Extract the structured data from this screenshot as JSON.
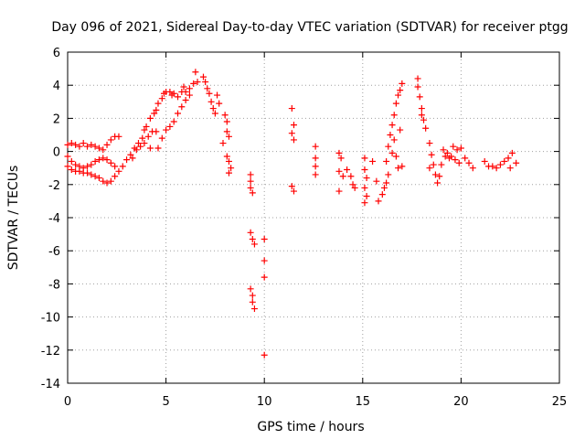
{
  "chart_data": {
    "type": "scatter",
    "title": "Day 096 of 2021, Sidereal Day-to-day VTEC variation (SDTVAR) for receiver ptgg",
    "xlabel": "GPS time / hours",
    "ylabel": "SDTVAR / TECUs",
    "xlim": [
      0,
      25
    ],
    "ylim": [
      -14,
      6
    ],
    "xticks": [
      0,
      5,
      10,
      15,
      20,
      25
    ],
    "yticks": [
      -14,
      -12,
      -10,
      -8,
      -6,
      -4,
      -2,
      0,
      2,
      4,
      6
    ],
    "grid": true,
    "marker": "+",
    "color": "#ff0000",
    "series": [
      {
        "name": "ptgg",
        "points": [
          [
            0.0,
            0.4
          ],
          [
            0.2,
            0.5
          ],
          [
            0.4,
            0.4
          ],
          [
            0.6,
            0.3
          ],
          [
            0.8,
            0.5
          ],
          [
            1.0,
            0.3
          ],
          [
            1.2,
            0.4
          ],
          [
            1.4,
            0.3
          ],
          [
            1.6,
            0.2
          ],
          [
            1.8,
            0.1
          ],
          [
            2.0,
            0.4
          ],
          [
            2.2,
            0.7
          ],
          [
            2.4,
            0.9
          ],
          [
            2.6,
            0.9
          ],
          [
            0.0,
            -0.3
          ],
          [
            0.2,
            -0.6
          ],
          [
            0.4,
            -0.8
          ],
          [
            0.6,
            -0.9
          ],
          [
            0.8,
            -1.0
          ],
          [
            1.0,
            -0.9
          ],
          [
            1.2,
            -0.8
          ],
          [
            1.4,
            -0.6
          ],
          [
            1.6,
            -0.5
          ],
          [
            1.8,
            -0.4
          ],
          [
            2.0,
            -0.5
          ],
          [
            2.2,
            -0.7
          ],
          [
            2.4,
            -0.9
          ],
          [
            0.0,
            -0.9
          ],
          [
            0.2,
            -1.1
          ],
          [
            0.4,
            -1.2
          ],
          [
            0.6,
            -1.2
          ],
          [
            0.8,
            -1.3
          ],
          [
            1.0,
            -1.3
          ],
          [
            1.2,
            -1.4
          ],
          [
            1.4,
            -1.5
          ],
          [
            1.6,
            -1.6
          ],
          [
            1.8,
            -1.8
          ],
          [
            2.0,
            -1.9
          ],
          [
            2.2,
            -1.8
          ],
          [
            2.4,
            -1.5
          ],
          [
            2.6,
            -1.2
          ],
          [
            2.8,
            -0.9
          ],
          [
            3.0,
            -0.5
          ],
          [
            3.2,
            -0.2
          ],
          [
            3.4,
            0.2
          ],
          [
            3.6,
            0.5
          ],
          [
            3.8,
            0.8
          ],
          [
            3.3,
            -0.4
          ],
          [
            3.5,
            0.1
          ],
          [
            3.7,
            0.3
          ],
          [
            3.9,
            0.5
          ],
          [
            4.1,
            0.9
          ],
          [
            4.3,
            1.2
          ],
          [
            4.5,
            1.2
          ],
          [
            3.9,
            1.3
          ],
          [
            4.0,
            1.5
          ],
          [
            4.2,
            2.0
          ],
          [
            4.4,
            2.3
          ],
          [
            4.5,
            2.5
          ],
          [
            4.6,
            2.9
          ],
          [
            4.8,
            3.2
          ],
          [
            4.9,
            3.5
          ],
          [
            5.0,
            3.6
          ],
          [
            5.2,
            3.6
          ],
          [
            5.3,
            3.4
          ],
          [
            5.4,
            3.5
          ],
          [
            5.6,
            3.3
          ],
          [
            5.8,
            3.6
          ],
          [
            5.9,
            3.9
          ],
          [
            6.0,
            3.6
          ],
          [
            6.2,
            3.8
          ],
          [
            6.4,
            4.1
          ],
          [
            6.5,
            4.8
          ],
          [
            6.6,
            4.2
          ],
          [
            4.2,
            0.2
          ],
          [
            4.6,
            0.2
          ],
          [
            4.8,
            0.8
          ],
          [
            5.0,
            1.3
          ],
          [
            5.2,
            1.5
          ],
          [
            5.4,
            1.8
          ],
          [
            5.6,
            2.3
          ],
          [
            5.8,
            2.7
          ],
          [
            6.0,
            3.1
          ],
          [
            6.2,
            3.4
          ],
          [
            6.9,
            4.5
          ],
          [
            7.0,
            4.2
          ],
          [
            7.1,
            3.8
          ],
          [
            7.2,
            3.5
          ],
          [
            7.3,
            3.0
          ],
          [
            7.4,
            2.6
          ],
          [
            7.5,
            2.3
          ],
          [
            7.6,
            3.4
          ],
          [
            7.7,
            2.9
          ],
          [
            8.0,
            2.2
          ],
          [
            8.1,
            1.8
          ],
          [
            8.1,
            1.2
          ],
          [
            8.2,
            0.9
          ],
          [
            7.9,
            0.5
          ],
          [
            8.1,
            -0.3
          ],
          [
            8.2,
            -0.6
          ],
          [
            8.3,
            -1.0
          ],
          [
            8.2,
            -1.3
          ],
          [
            9.3,
            -1.4
          ],
          [
            9.3,
            -1.8
          ],
          [
            9.3,
            -2.2
          ],
          [
            9.4,
            -2.5
          ],
          [
            9.3,
            -4.9
          ],
          [
            9.4,
            -5.3
          ],
          [
            9.5,
            -5.6
          ],
          [
            9.3,
            -8.3
          ],
          [
            9.4,
            -8.7
          ],
          [
            9.4,
            -9.1
          ],
          [
            9.5,
            -9.5
          ],
          [
            10.0,
            -5.3
          ],
          [
            10.0,
            -6.6
          ],
          [
            10.0,
            -7.6
          ],
          [
            10.0,
            -12.3
          ],
          [
            11.4,
            2.6
          ],
          [
            11.5,
            1.6
          ],
          [
            11.4,
            1.1
          ],
          [
            11.5,
            0.7
          ],
          [
            11.4,
            -2.1
          ],
          [
            11.5,
            -2.4
          ],
          [
            12.6,
            0.3
          ],
          [
            12.6,
            -0.4
          ],
          [
            12.6,
            -0.9
          ],
          [
            12.6,
            -1.4
          ],
          [
            13.8,
            -0.1
          ],
          [
            13.9,
            -0.4
          ],
          [
            13.8,
            -1.2
          ],
          [
            14.0,
            -1.5
          ],
          [
            13.8,
            -2.4
          ],
          [
            14.2,
            -1.1
          ],
          [
            14.4,
            -1.5
          ],
          [
            14.5,
            -2.0
          ],
          [
            14.6,
            -2.2
          ],
          [
            15.1,
            -0.4
          ],
          [
            15.1,
            -1.1
          ],
          [
            15.2,
            -1.6
          ],
          [
            15.1,
            -2.2
          ],
          [
            15.2,
            -2.7
          ],
          [
            15.1,
            -3.1
          ],
          [
            15.5,
            -0.6
          ],
          [
            15.7,
            -1.8
          ],
          [
            15.8,
            -3.0
          ],
          [
            16.0,
            -2.6
          ],
          [
            16.1,
            -2.2
          ],
          [
            16.2,
            -1.9
          ],
          [
            16.3,
            -1.4
          ],
          [
            16.2,
            -0.6
          ],
          [
            16.3,
            0.3
          ],
          [
            16.4,
            1.0
          ],
          [
            16.5,
            1.6
          ],
          [
            16.6,
            2.2
          ],
          [
            16.7,
            2.9
          ],
          [
            16.8,
            3.4
          ],
          [
            16.9,
            3.7
          ],
          [
            17.0,
            4.1
          ],
          [
            16.5,
            -0.1
          ],
          [
            16.7,
            -0.3
          ],
          [
            16.8,
            -1.0
          ],
          [
            17.0,
            -0.9
          ],
          [
            16.6,
            0.7
          ],
          [
            16.9,
            1.3
          ],
          [
            17.8,
            4.4
          ],
          [
            17.8,
            3.9
          ],
          [
            17.9,
            3.3
          ],
          [
            18.0,
            2.6
          ],
          [
            18.1,
            1.9
          ],
          [
            18.2,
            1.4
          ],
          [
            18.0,
            2.2
          ],
          [
            18.4,
            0.5
          ],
          [
            18.5,
            -0.2
          ],
          [
            18.6,
            -0.8
          ],
          [
            18.7,
            -1.4
          ],
          [
            18.8,
            -1.9
          ],
          [
            18.9,
            -1.5
          ],
          [
            19.0,
            -0.8
          ],
          [
            18.4,
            -1.0
          ],
          [
            19.1,
            0.1
          ],
          [
            19.3,
            -0.1
          ],
          [
            19.5,
            -0.3
          ],
          [
            19.7,
            -0.5
          ],
          [
            19.9,
            -0.7
          ],
          [
            19.2,
            -0.3
          ],
          [
            19.4,
            -0.4
          ],
          [
            19.6,
            0.3
          ],
          [
            19.8,
            0.1
          ],
          [
            20.0,
            0.2
          ],
          [
            20.2,
            -0.4
          ],
          [
            20.4,
            -0.7
          ],
          [
            21.2,
            -0.6
          ],
          [
            21.4,
            -0.9
          ],
          [
            21.6,
            -0.9
          ],
          [
            21.8,
            -1.0
          ],
          [
            22.0,
            -0.8
          ],
          [
            22.2,
            -0.6
          ],
          [
            22.4,
            -0.4
          ],
          [
            22.6,
            -0.1
          ],
          [
            22.8,
            -0.7
          ],
          [
            22.5,
            -1.0
          ],
          [
            20.6,
            -1.0
          ]
        ]
      }
    ]
  }
}
